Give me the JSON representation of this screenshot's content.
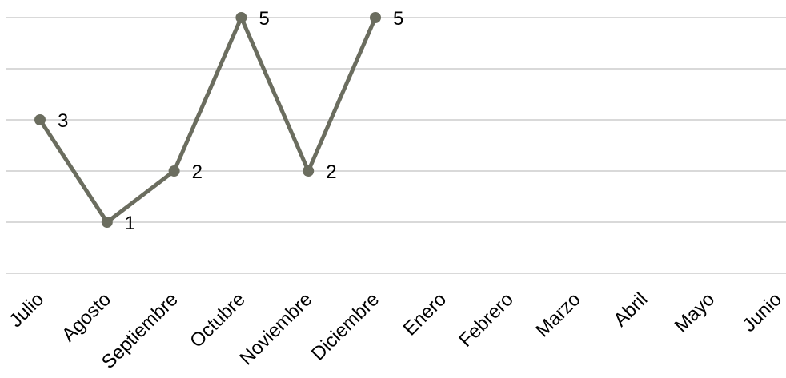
{
  "chart_data": {
    "type": "line",
    "categories": [
      "Julio",
      "Agosto",
      "Septiembre",
      "Octubre",
      "Noviembre",
      "Diciembre",
      "Enero",
      "Febrero",
      "Marzo",
      "Abril",
      "Mayo",
      "Junio"
    ],
    "series": [
      {
        "values": [
          3,
          1,
          2,
          5,
          2,
          5,
          null,
          null,
          null,
          null,
          null,
          null
        ],
        "color": "#6b6d5f"
      }
    ],
    "ylim": [
      0,
      5
    ],
    "grid": true,
    "data_labels": true,
    "legend": "none",
    "colors": {
      "gridline": "#d9d9d9",
      "text": "#000000"
    }
  }
}
